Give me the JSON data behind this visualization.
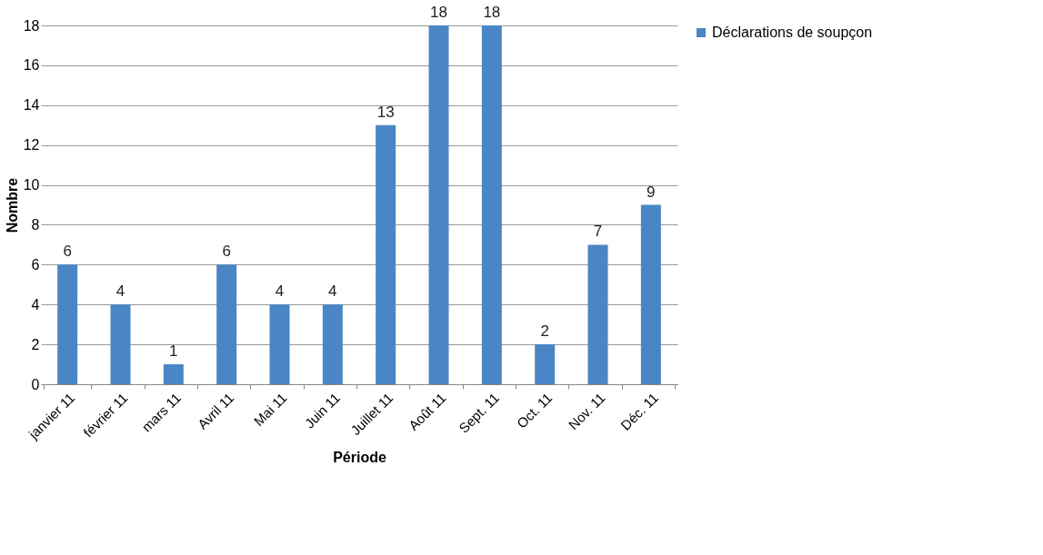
{
  "chart_data": {
    "type": "bar",
    "xlabel": "Période",
    "ylabel": "Nombre",
    "categories": [
      "janvier 11",
      "février 11",
      "mars 11",
      "Avril 11",
      "Mai 11",
      "Juin 11",
      "Juillet 11",
      "Août 11",
      "Sept. 11",
      "Oct. 11",
      "Nov. 11",
      "Déc. 11"
    ],
    "series": [
      {
        "name": "Déclarations de soupçon",
        "color": "#4a86c5",
        "values": [
          6,
          4,
          1,
          6,
          4,
          4,
          13,
          18,
          18,
          2,
          7,
          9
        ]
      }
    ],
    "ylim": [
      0,
      18
    ],
    "yticks": [
      0,
      2,
      4,
      6,
      8,
      10,
      12,
      14,
      16,
      18
    ],
    "grid": "y",
    "legend": "right",
    "data_labels": true
  }
}
